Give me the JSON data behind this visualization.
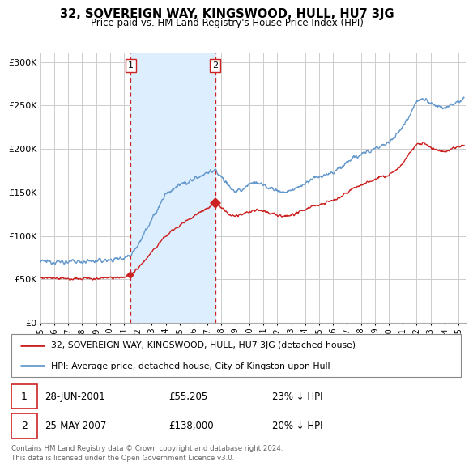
{
  "title": "32, SOVEREIGN WAY, KINGSWOOD, HULL, HU7 3JG",
  "subtitle": "Price paid vs. HM Land Registry's House Price Index (HPI)",
  "hpi_color": "#6699cc",
  "price_color": "#cc2222",
  "vline_color": "#cc2222",
  "shade_color": "#ddeeff",
  "background_color": "#ffffff",
  "grid_color": "#cccccc",
  "ylim": [
    0,
    310000
  ],
  "yticks": [
    0,
    50000,
    100000,
    150000,
    200000,
    250000,
    300000
  ],
  "ytick_labels": [
    "£0",
    "£50K",
    "£100K",
    "£150K",
    "£200K",
    "£250K",
    "£300K"
  ],
  "xmin_year": 1995.0,
  "xmax_year": 2025.5,
  "purchase1_year": 2001.49,
  "purchase1_price": 55205,
  "purchase2_year": 2007.55,
  "purchase2_price": 138000,
  "legend_line1": "32, SOVEREIGN WAY, KINGSWOOD, HULL, HU7 3JG (detached house)",
  "legend_line2": "HPI: Average price, detached house, City of Kingston upon Hull",
  "footnote": "Contains HM Land Registry data © Crown copyright and database right 2024.\nThis data is licensed under the Open Government Licence v3.0.",
  "xtick_years": [
    1995,
    1996,
    1997,
    1998,
    1999,
    2000,
    2001,
    2002,
    2003,
    2004,
    2005,
    2006,
    2007,
    2008,
    2009,
    2010,
    2011,
    2012,
    2013,
    2014,
    2015,
    2016,
    2017,
    2018,
    2019,
    2020,
    2021,
    2022,
    2023,
    2024,
    2025
  ]
}
